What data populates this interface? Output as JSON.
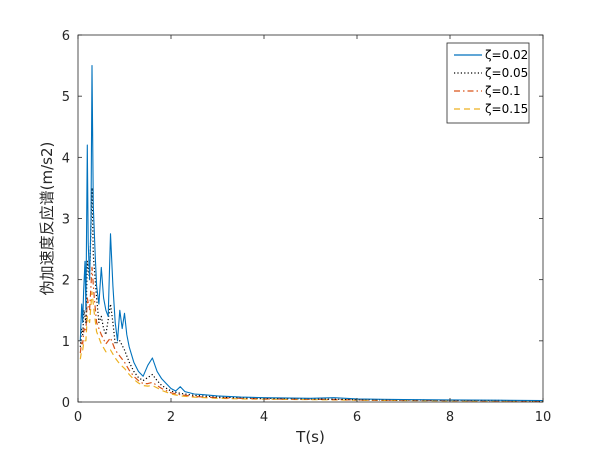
{
  "chart_data": {
    "type": "line",
    "title": "",
    "xlabel": "T(s)",
    "ylabel": "伪加速度反应谱(m/s2)",
    "xlim": [
      0,
      10
    ],
    "ylim": [
      0,
      6
    ],
    "xticks": [
      "0",
      "2",
      "4",
      "6",
      "8",
      "10"
    ],
    "yticks": [
      "0",
      "1",
      "2",
      "3",
      "4",
      "5",
      "6"
    ],
    "grid": false,
    "legend_position": "top-right",
    "series": [
      {
        "name": "ζ=0.02",
        "color": "#0072BD",
        "linestyle": "solid",
        "points": [
          [
            0.05,
            1.0
          ],
          [
            0.08,
            1.6
          ],
          [
            0.1,
            1.3
          ],
          [
            0.12,
            1.8
          ],
          [
            0.15,
            2.3
          ],
          [
            0.17,
            1.5
          ],
          [
            0.2,
            4.2
          ],
          [
            0.22,
            2.6
          ],
          [
            0.25,
            2.0
          ],
          [
            0.28,
            3.0
          ],
          [
            0.3,
            5.5
          ],
          [
            0.33,
            3.2
          ],
          [
            0.37,
            2.4
          ],
          [
            0.4,
            1.9
          ],
          [
            0.45,
            1.6
          ],
          [
            0.5,
            2.2
          ],
          [
            0.55,
            1.7
          ],
          [
            0.6,
            1.5
          ],
          [
            0.65,
            1.4
          ],
          [
            0.7,
            2.75
          ],
          [
            0.75,
            1.9
          ],
          [
            0.8,
            1.3
          ],
          [
            0.85,
            1.0
          ],
          [
            0.9,
            1.5
          ],
          [
            0.95,
            1.2
          ],
          [
            1.0,
            1.45
          ],
          [
            1.05,
            1.1
          ],
          [
            1.1,
            0.9
          ],
          [
            1.2,
            0.65
          ],
          [
            1.3,
            0.5
          ],
          [
            1.4,
            0.42
          ],
          [
            1.5,
            0.6
          ],
          [
            1.6,
            0.72
          ],
          [
            1.7,
            0.5
          ],
          [
            1.8,
            0.38
          ],
          [
            1.9,
            0.3
          ],
          [
            2.0,
            0.22
          ],
          [
            2.1,
            0.18
          ],
          [
            2.2,
            0.25
          ],
          [
            2.3,
            0.17
          ],
          [
            2.5,
            0.13
          ],
          [
            2.7,
            0.12
          ],
          [
            3.0,
            0.1
          ],
          [
            3.5,
            0.08
          ],
          [
            4.0,
            0.07
          ],
          [
            5.0,
            0.06
          ],
          [
            5.5,
            0.07
          ],
          [
            6.0,
            0.05
          ],
          [
            7.0,
            0.04
          ],
          [
            8.0,
            0.035
          ],
          [
            9.0,
            0.03
          ],
          [
            10.0,
            0.025
          ]
        ]
      },
      {
        "name": "ζ=0.05",
        "color": "#000000",
        "linestyle": "dotted",
        "points": [
          [
            0.05,
            0.9
          ],
          [
            0.08,
            1.2
          ],
          [
            0.1,
            1.1
          ],
          [
            0.13,
            1.5
          ],
          [
            0.17,
            1.3
          ],
          [
            0.2,
            2.3
          ],
          [
            0.25,
            2.0
          ],
          [
            0.3,
            3.5
          ],
          [
            0.33,
            2.4
          ],
          [
            0.4,
            1.7
          ],
          [
            0.45,
            1.3
          ],
          [
            0.5,
            1.4
          ],
          [
            0.55,
            1.2
          ],
          [
            0.6,
            1.1
          ],
          [
            0.7,
            1.6
          ],
          [
            0.75,
            1.3
          ],
          [
            0.8,
            0.95
          ],
          [
            0.9,
            1.0
          ],
          [
            1.0,
            0.85
          ],
          [
            1.1,
            0.65
          ],
          [
            1.2,
            0.5
          ],
          [
            1.3,
            0.4
          ],
          [
            1.4,
            0.35
          ],
          [
            1.5,
            0.4
          ],
          [
            1.6,
            0.45
          ],
          [
            1.7,
            0.35
          ],
          [
            1.8,
            0.27
          ],
          [
            2.0,
            0.18
          ],
          [
            2.2,
            0.14
          ],
          [
            2.5,
            0.11
          ],
          [
            3.0,
            0.08
          ],
          [
            3.5,
            0.07
          ],
          [
            4.0,
            0.06
          ],
          [
            5.0,
            0.05
          ],
          [
            6.0,
            0.04
          ],
          [
            7.0,
            0.035
          ],
          [
            8.0,
            0.03
          ],
          [
            9.0,
            0.025
          ],
          [
            10.0,
            0.02
          ]
        ]
      },
      {
        "name": "ζ=0.1",
        "color": "#D95319",
        "linestyle": "dashdot",
        "points": [
          [
            0.05,
            0.8
          ],
          [
            0.08,
            1.0
          ],
          [
            0.1,
            0.95
          ],
          [
            0.13,
            1.2
          ],
          [
            0.17,
            1.15
          ],
          [
            0.2,
            1.7
          ],
          [
            0.25,
            1.5
          ],
          [
            0.3,
            2.2
          ],
          [
            0.35,
            1.7
          ],
          [
            0.4,
            1.3
          ],
          [
            0.5,
            1.1
          ],
          [
            0.6,
            0.95
          ],
          [
            0.7,
            1.05
          ],
          [
            0.8,
            0.85
          ],
          [
            0.9,
            0.75
          ],
          [
            1.0,
            0.65
          ],
          [
            1.1,
            0.52
          ],
          [
            1.2,
            0.42
          ],
          [
            1.3,
            0.35
          ],
          [
            1.4,
            0.3
          ],
          [
            1.5,
            0.3
          ],
          [
            1.6,
            0.32
          ],
          [
            1.7,
            0.27
          ],
          [
            1.8,
            0.22
          ],
          [
            2.0,
            0.15
          ],
          [
            2.2,
            0.12
          ],
          [
            2.5,
            0.09
          ],
          [
            3.0,
            0.07
          ],
          [
            3.5,
            0.06
          ],
          [
            4.0,
            0.05
          ],
          [
            5.0,
            0.045
          ],
          [
            6.0,
            0.035
          ],
          [
            7.0,
            0.03
          ],
          [
            8.0,
            0.025
          ],
          [
            9.0,
            0.02
          ],
          [
            10.0,
            0.018
          ]
        ]
      },
      {
        "name": "ζ=0.15",
        "color": "#EDB120",
        "linestyle": "dashed",
        "points": [
          [
            0.05,
            0.7
          ],
          [
            0.08,
            0.85
          ],
          [
            0.1,
            0.85
          ],
          [
            0.13,
            1.0
          ],
          [
            0.17,
            1.0
          ],
          [
            0.2,
            1.4
          ],
          [
            0.25,
            1.3
          ],
          [
            0.3,
            1.8
          ],
          [
            0.35,
            1.45
          ],
          [
            0.4,
            1.15
          ],
          [
            0.5,
            0.95
          ],
          [
            0.6,
            0.82
          ],
          [
            0.7,
            0.85
          ],
          [
            0.8,
            0.72
          ],
          [
            0.9,
            0.62
          ],
          [
            1.0,
            0.55
          ],
          [
            1.1,
            0.45
          ],
          [
            1.2,
            0.37
          ],
          [
            1.3,
            0.31
          ],
          [
            1.4,
            0.27
          ],
          [
            1.5,
            0.26
          ],
          [
            1.6,
            0.27
          ],
          [
            1.7,
            0.23
          ],
          [
            1.8,
            0.19
          ],
          [
            2.0,
            0.13
          ],
          [
            2.2,
            0.1
          ],
          [
            2.5,
            0.08
          ],
          [
            3.0,
            0.06
          ],
          [
            3.5,
            0.05
          ],
          [
            4.0,
            0.045
          ],
          [
            5.0,
            0.04
          ],
          [
            6.0,
            0.03
          ],
          [
            7.0,
            0.025
          ],
          [
            8.0,
            0.02
          ],
          [
            9.0,
            0.018
          ],
          [
            10.0,
            0.015
          ]
        ]
      }
    ]
  }
}
